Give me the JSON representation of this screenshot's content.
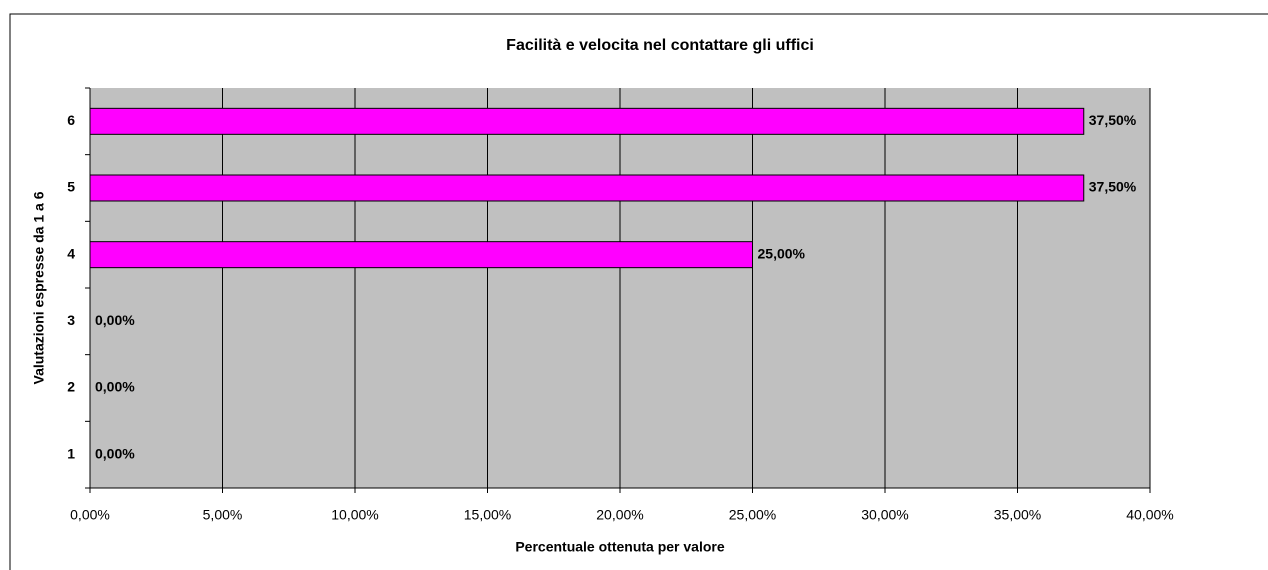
{
  "chart_data": {
    "type": "barh",
    "title": "Facilità e velocita nel contattare gli uffici",
    "x_label": "Percentuale ottenuta per valore",
    "y_label": "Valutazioni espresse da 1 a 6",
    "categories": [
      "1",
      "2",
      "3",
      "4",
      "5",
      "6"
    ],
    "values": [
      0,
      0,
      0,
      25,
      37.5,
      37.5
    ],
    "value_labels": [
      "0,00%",
      "0,00%",
      "0,00%",
      "25,00%",
      "37,50%",
      "37,50%"
    ],
    "color": "#ff00ff",
    "xlim": [
      0,
      40
    ],
    "xticks": [
      {
        "value": 0,
        "label": "0,00%"
      },
      {
        "value": 5,
        "label": "5,00%"
      },
      {
        "value": 10,
        "label": "10,00%"
      },
      {
        "value": 15,
        "label": "15,00%"
      },
      {
        "value": 20,
        "label": "20,00%"
      },
      {
        "value": 25,
        "label": "25,00%"
      },
      {
        "value": 30,
        "label": "30,00%"
      },
      {
        "value": 35,
        "label": "35,00%"
      },
      {
        "value": 40,
        "label": "40,00%"
      }
    ],
    "grid": true
  }
}
